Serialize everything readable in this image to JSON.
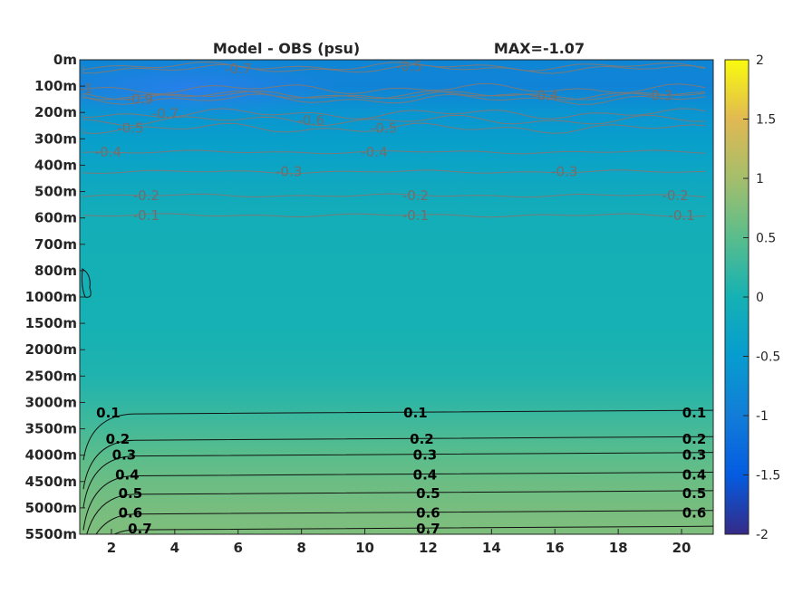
{
  "chart_data": {
    "type": "heatmap",
    "title": "Model - OBS (psu)",
    "max_label": "MAX=-1.07",
    "xlabel": "",
    "ylabel": "",
    "x_ticks": [
      "2",
      "4",
      "6",
      "8",
      "10",
      "12",
      "14",
      "16",
      "18",
      "20"
    ],
    "xlim": [
      1,
      21
    ],
    "y_depth_labels": [
      "0m",
      "100m",
      "200m",
      "300m",
      "400m",
      "500m",
      "600m",
      "700m",
      "800m",
      "1000m",
      "1500m",
      "2000m",
      "2500m",
      "3000m",
      "3500m",
      "4000m",
      "4500m",
      "5000m",
      "5500m"
    ],
    "colorbar": {
      "ticks": [
        "2",
        "1.5",
        "1",
        "0.5",
        "0",
        "-0.5",
        "-1",
        "-1.5",
        "-2"
      ],
      "range": [
        -2,
        2
      ],
      "colormap": "parula"
    },
    "field_profile": {
      "depth_index": [
        0,
        1,
        2,
        3,
        4,
        5,
        6,
        7,
        8,
        10,
        12,
        13,
        14,
        15,
        16,
        17,
        18
      ],
      "value": [
        -0.85,
        -0.9,
        -0.62,
        -0.45,
        -0.32,
        -0.18,
        -0.08,
        -0.04,
        -0.02,
        0.0,
        0.08,
        0.2,
        0.35,
        0.5,
        0.62,
        0.7,
        0.75
      ]
    },
    "contours_positive": [
      {
        "label": "0.1",
        "row": 13.4,
        "label_x": [
          1.9,
          11.6,
          20.4
        ]
      },
      {
        "label": "0.2",
        "row": 14.4,
        "label_x": [
          2.2,
          11.8,
          20.4
        ]
      },
      {
        "label": "0.3",
        "row": 15.0,
        "label_x": [
          2.4,
          11.9,
          20.4
        ]
      },
      {
        "label": "0.4",
        "row": 15.75,
        "label_x": [
          2.5,
          11.9,
          20.4
        ]
      },
      {
        "label": "0.5",
        "row": 16.45,
        "label_x": [
          2.6,
          12.0,
          20.4
        ]
      },
      {
        "label": "0.6",
        "row": 17.2,
        "label_x": [
          2.6,
          12.0,
          20.4
        ]
      },
      {
        "label": "0.7",
        "row": 17.8,
        "label_x": [
          2.9,
          12.0
        ]
      }
    ],
    "contours_negative": [
      {
        "label": "-0.1",
        "row": 5.9,
        "label_x": [
          3.1,
          11.6,
          20.0
        ]
      },
      {
        "label": "-0.2",
        "row": 5.15,
        "label_x": [
          3.1,
          11.6,
          19.8
        ]
      },
      {
        "label": "-0.3",
        "row": 4.25,
        "label_x": [
          7.6,
          16.3
        ]
      },
      {
        "label": "-0.4",
        "row": 3.5,
        "label_x": [
          1.9,
          10.3
        ]
      },
      {
        "label": "-0.5",
        "row": 2.6,
        "label_x": [
          2.6,
          10.6
        ]
      },
      {
        "label": "-0.6",
        "row": 2.3,
        "label_x": [
          8.3
        ]
      },
      {
        "label": "-0.7",
        "row": 2.05,
        "label_x": [
          3.7
        ]
      },
      {
        "label": "-0.9",
        "row": 1.5,
        "label_x": [
          2.9
        ]
      },
      {
        "label": "-1",
        "row": 1.1,
        "label_x": [
          1.2
        ]
      }
    ],
    "contours_top": [
      {
        "label": "-0.5",
        "row": 0.25,
        "label_x": [
          11.4
        ]
      },
      {
        "label": "-0.7",
        "row": 0.35,
        "label_x": [
          6.0
        ]
      },
      {
        "label": "-0.4",
        "row": 1.35,
        "label_x": [
          15.7
        ]
      },
      {
        "label": "-0.3",
        "row": 1.35,
        "label_x": [
          19.3
        ]
      }
    ]
  }
}
